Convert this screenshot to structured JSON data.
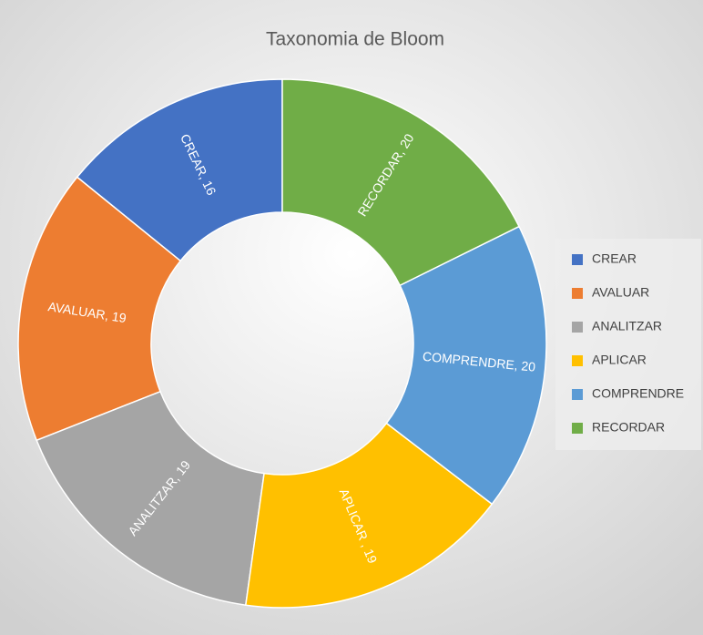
{
  "chart_data": {
    "type": "donut",
    "title": "Taxonomia de Bloom",
    "categories": [
      "CREAR",
      "AVALUAR",
      "ANALITZAR",
      "APLICAR",
      "COMPRENDRE",
      "RECORDAR"
    ],
    "values": [
      16,
      19,
      19,
      19,
      20,
      20
    ],
    "value_labels": [
      "CREAR, 16",
      "AVALUAR, 19",
      "ANALITZAR, 19",
      "APLICAR , 19",
      "COMPRENDRE, 20",
      "RECORDAR, 20"
    ],
    "colors": [
      "#4472c4",
      "#ed7d31",
      "#a5a5a5",
      "#ffc000",
      "#5b9bd5",
      "#70ad47"
    ],
    "legend": "right"
  }
}
